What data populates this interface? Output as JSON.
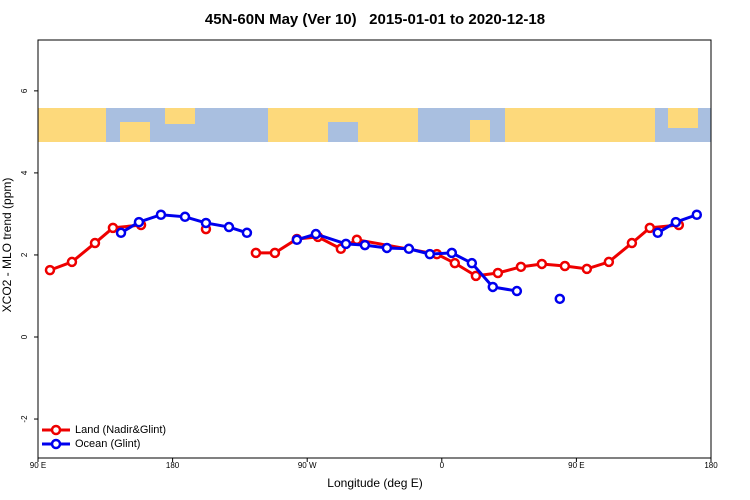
{
  "chart_data": {
    "type": "line",
    "title": "45N-60N May (Ver 10)   2015-01-01 to 2020-12-18",
    "x_label": "Longitude (deg E)",
    "y_label": "XCO2 - MLO trend (ppm)",
    "xlim": [
      90,
      540
    ],
    "xticks": [
      {
        "value": 90,
        "label": "90 E"
      },
      {
        "value": 180,
        "label": "180"
      },
      {
        "value": 270,
        "label": "90 W"
      },
      {
        "value": 360,
        "label": "0"
      },
      {
        "value": 450,
        "label": "90 E"
      },
      {
        "value": 540,
        "label": "180"
      }
    ],
    "ylim": [
      -2.95,
      7.24
    ],
    "yticks": [
      -2,
      0,
      2,
      4,
      6
    ],
    "grid": false,
    "legend": "bottom-left",
    "series": [
      {
        "name": "Land (Nadir&Glint)",
        "color": "#ee0000",
        "x": [
          98.0,
          112.7,
          128.1,
          140.1,
          158.9,
          null,
          202.3,
          null,
          235.7,
          248.4,
          263.1,
          277.2,
          292.5,
          303.2,
          356.7,
          368.7,
          382.8,
          397.5,
          412.9,
          426.9,
          442.3,
          457.0,
          471.7,
          487.1,
          499.1,
          518.5
        ],
        "values": [
          1.63,
          1.83,
          2.29,
          2.66,
          2.73,
          null,
          2.63,
          null,
          2.05,
          2.05,
          2.39,
          2.44,
          2.15,
          2.37,
          2.02,
          1.8,
          1.49,
          1.56,
          1.71,
          1.78,
          1.73,
          1.66,
          1.83,
          2.29,
          2.66,
          2.73
        ]
      },
      {
        "name": "Ocean (Glint)",
        "color": "#0000ee",
        "x": [
          145.5,
          157.5,
          172.2,
          188.3,
          202.3,
          217.7,
          229.7,
          null,
          263.1,
          275.8,
          295.9,
          308.6,
          323.3,
          338.0,
          352.0,
          366.7,
          380.1,
          394.1,
          410.2,
          null,
          438.9,
          null,
          504.4,
          516.5,
          530.5
        ],
        "values": [
          2.54,
          2.8,
          2.98,
          2.93,
          2.78,
          2.68,
          2.54,
          null,
          2.37,
          2.51,
          2.27,
          2.24,
          2.17,
          2.15,
          2.02,
          2.05,
          1.8,
          1.22,
          1.12,
          null,
          0.93,
          null,
          2.54,
          2.8,
          2.98
        ]
      }
    ]
  }
}
